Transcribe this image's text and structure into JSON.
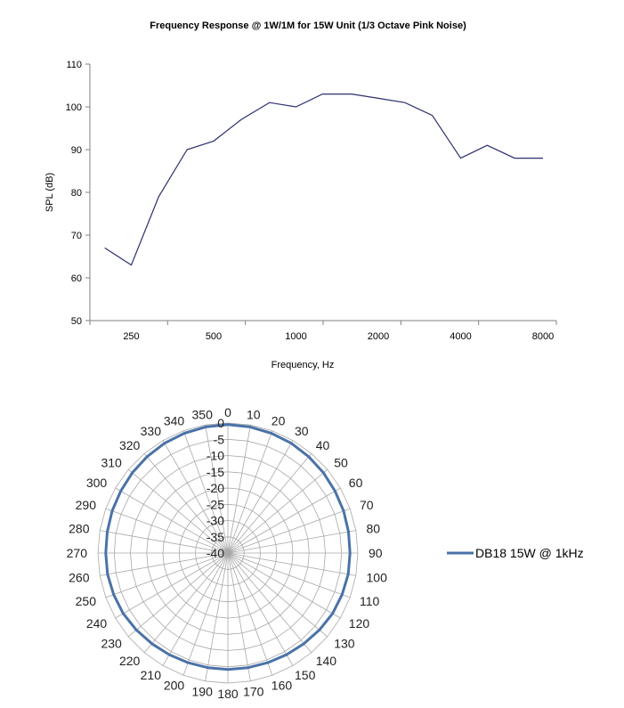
{
  "chart_data": [
    {
      "type": "line",
      "title": "Frequency Response @ 1W/1M for 15W Unit (1/3 Octave Pink Noise)",
      "xlabel": "Frequency, Hz",
      "ylabel": "SPL (dB)",
      "x_scale": "log",
      "x_ticks": [
        250,
        500,
        1000,
        2000,
        4000,
        8000
      ],
      "ylim": [
        50,
        110
      ],
      "y_ticks": [
        50,
        60,
        70,
        80,
        90,
        100,
        110
      ],
      "grid": false,
      "legend": "none",
      "line_color": "#2b2f6e",
      "series": [
        {
          "x": [
            200,
            250,
            315,
            400,
            500,
            630,
            800,
            1000,
            1250,
            1600,
            2000,
            2500,
            3150,
            4000,
            5000,
            6300,
            8000
          ],
          "values": [
            67,
            63,
            79,
            90,
            92,
            97,
            101,
            100,
            103,
            103,
            102,
            101,
            98,
            88,
            91,
            88,
            88
          ]
        }
      ]
    },
    {
      "type": "polar",
      "angle_ticks": [
        0,
        10,
        20,
        30,
        40,
        50,
        60,
        70,
        80,
        90,
        100,
        110,
        120,
        130,
        140,
        150,
        160,
        170,
        180,
        190,
        200,
        210,
        220,
        230,
        240,
        250,
        260,
        270,
        280,
        290,
        300,
        310,
        320,
        330,
        340,
        350
      ],
      "radial_ticks": [
        0,
        -5,
        -10,
        -15,
        -20,
        -25,
        -30,
        -35,
        -40
      ],
      "rlim": [
        -40,
        0
      ],
      "grid": true,
      "legend": "right",
      "line_color": "#4a72a8",
      "series": [
        {
          "name": "DB18 15W @ 1kHz",
          "angles": [
            0,
            10,
            20,
            30,
            40,
            50,
            60,
            70,
            80,
            90,
            100,
            110,
            120,
            130,
            140,
            150,
            160,
            170,
            180,
            190,
            200,
            210,
            220,
            230,
            240,
            250,
            260,
            270,
            280,
            290,
            300,
            310,
            320,
            330,
            340,
            350
          ],
          "values": [
            -0.5,
            -0.6,
            -0.8,
            -1,
            -1.3,
            -1.6,
            -1.9,
            -2.1,
            -2.3,
            -2.4,
            -2.4,
            -2.6,
            -2.8,
            -3.2,
            -3.6,
            -3.9,
            -4.1,
            -4.2,
            -4.2,
            -4.2,
            -4.1,
            -3.9,
            -3.6,
            -3.2,
            -2.8,
            -2.6,
            -2.4,
            -2.4,
            -2.3,
            -2.1,
            -1.9,
            -1.6,
            -1.3,
            -1,
            -0.8,
            -0.6
          ]
        }
      ]
    }
  ]
}
